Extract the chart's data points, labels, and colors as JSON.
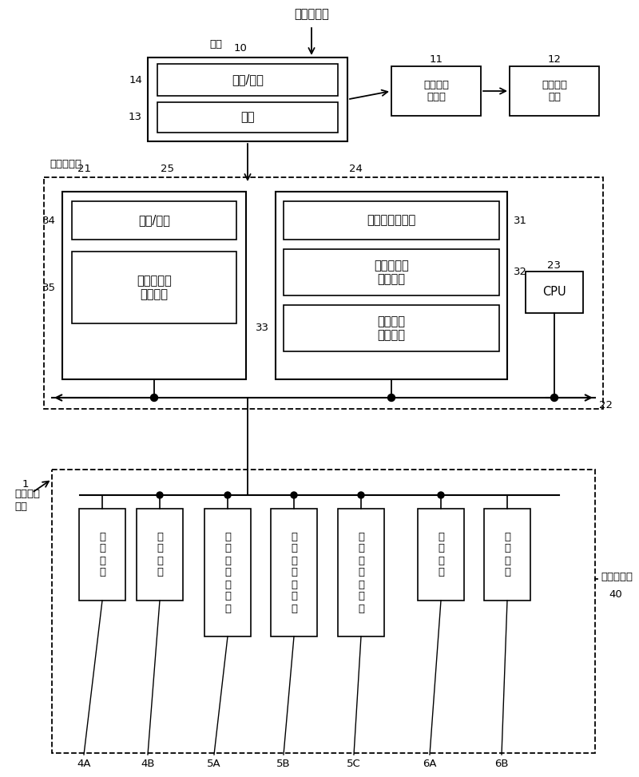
{
  "bg_color": "#ffffff",
  "figsize": [
    8.0,
    9.73
  ],
  "dpi": 100,
  "labels": {
    "upstream": "上游侧装置",
    "host": "主机",
    "host_num": "10",
    "recipe_params": "方案/参数",
    "program": "程序",
    "auto_transport": "自动输送\n控制部",
    "top_transport": "顶部输送\n装置",
    "num_11": "11",
    "num_12": "12",
    "num_14": "14",
    "num_13": "13",
    "group_controller": "群组控制器",
    "num_21": "21",
    "num_25": "25",
    "num_24": "24",
    "num_34": "34",
    "num_35": "35",
    "num_31": "31",
    "num_32": "32",
    "num_33": "33",
    "num_23": "23",
    "num_22": "22",
    "recipe_params2": "方案/参数",
    "device_status": "装置的状况\n信息数据",
    "device_select": "装置的选择程序",
    "batch_handover": "批量的交出\n控制程序",
    "carrier_transport": "载体输送\n控制程序",
    "cpu": "CPU",
    "substrate_system_line1": "基板处理",
    "substrate_system_line2": "系统",
    "num_1": "1",
    "device_group_line1": "处理装置组",
    "num_40": "40",
    "box_4A": "涂\n敷\n装\n置",
    "box_4B": "涂\n敷\n装\n置",
    "box_5A": "曝\n光\n、\n加\n热\n装\n置",
    "box_5B": "曝\n光\n、\n加\n热\n装\n置",
    "box_5C": "曝\n光\n、\n加\n热\n装\n置",
    "box_6A": "显\n像\n装\n置",
    "box_6B": "显\n像\n装\n置",
    "label_4A": "4A",
    "label_4B": "4B",
    "label_5A": "5A",
    "label_5B": "5B",
    "label_5C": "5C",
    "label_6A": "6A",
    "label_6B": "6B"
  }
}
